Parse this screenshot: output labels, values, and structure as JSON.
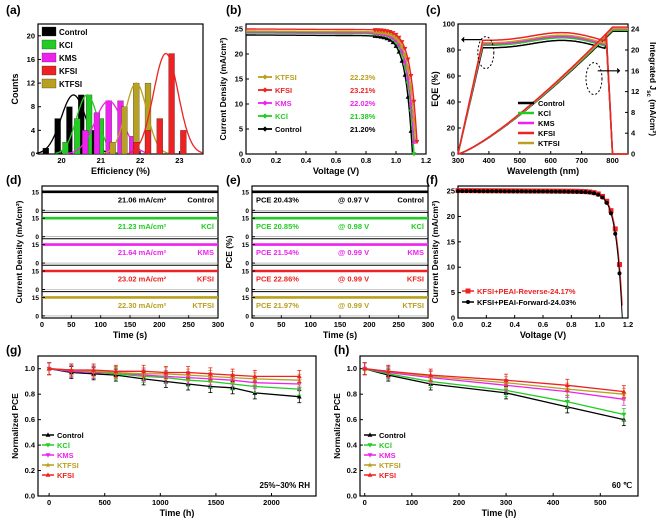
{
  "colors": {
    "Control": "#000000",
    "KCl": "#22cc22",
    "KMS": "#ee22ee",
    "KFSI": "#ee2222",
    "KTFSI": "#b8a020",
    "KFSI_PEAI_Reverse": "#ee2222",
    "KFSI_PEAI_Forward": "#000000"
  },
  "chart_data": [
    {
      "id": "a",
      "panel_label": "(a)",
      "type": "bar",
      "xlabel": "Efficiency (%)",
      "ylabel": "Counts",
      "xlim": [
        19.4,
        23.6
      ],
      "ylim": [
        0,
        22
      ],
      "xticks": [
        20,
        21,
        22,
        23
      ],
      "yticks": [
        0,
        4,
        8,
        12,
        16,
        20
      ],
      "bar_width": 0.15,
      "legend": [
        "Control",
        "KCl",
        "KMS",
        "KFSI",
        "KTFSI"
      ],
      "series": [
        {
          "name": "Control",
          "x": [
            19.6,
            19.9,
            20.2,
            20.5,
            20.8
          ],
          "values": [
            1,
            6,
            8,
            10,
            4
          ]
        },
        {
          "name": "KCl",
          "x": [
            20.1,
            20.4,
            20.7,
            21.0
          ],
          "values": [
            2,
            6,
            10,
            6
          ]
        },
        {
          "name": "KMS",
          "x": [
            20.6,
            20.9,
            21.2,
            21.5,
            21.8
          ],
          "values": [
            4,
            7,
            9,
            9,
            3
          ]
        },
        {
          "name": "KTFSI",
          "x": [
            21.3,
            21.6,
            21.9,
            22.2
          ],
          "values": [
            2,
            8,
            12,
            12
          ]
        },
        {
          "name": "KFSI",
          "x": [
            21.9,
            22.2,
            22.5,
            22.8,
            23.1
          ],
          "values": [
            2,
            4,
            6,
            17,
            4
          ]
        }
      ]
    },
    {
      "id": "b",
      "panel_label": "(b)",
      "type": "line",
      "xlabel": "Voltage (V)",
      "ylabel": "Current Density (mA/cm²)",
      "xlim": [
        0,
        1.2
      ],
      "ylim": [
        0,
        26
      ],
      "xticks": [
        0.0,
        0.2,
        0.4,
        0.6,
        0.8,
        1.0,
        1.2
      ],
      "yticks": [
        0,
        5,
        10,
        15,
        20,
        25
      ],
      "legend_labels": [
        "KTFSI",
        "KFSI",
        "KMS",
        "KCl",
        "Control"
      ],
      "legend_values": [
        "22.23%",
        "23.21%",
        "22.02%",
        "21.38%",
        "21.20%"
      ],
      "series": [
        {
          "name": "Control",
          "jsc": 23.8,
          "voc": 1.11
        },
        {
          "name": "KCl",
          "jsc": 24.2,
          "voc": 1.12
        },
        {
          "name": "KMS",
          "jsc": 24.4,
          "voc": 1.125
        },
        {
          "name": "KTFSI",
          "jsc": 24.6,
          "voc": 1.135
        },
        {
          "name": "KFSI",
          "jsc": 25.0,
          "voc": 1.145
        }
      ]
    },
    {
      "id": "c",
      "panel_label": "(c)",
      "type": "line",
      "xlabel": "Wavelength (nm)",
      "ylabel": "EQE (%)",
      "ylabel_right": "Integrated J",
      "ylabel_right_sub": "sc",
      "ylabel_right_unit": " (mA/cm²)",
      "xlim": [
        300,
        850
      ],
      "ylim": [
        0,
        100
      ],
      "ylim_right": [
        0,
        25
      ],
      "xticks": [
        300,
        400,
        500,
        600,
        700,
        800
      ],
      "yticks": [
        0,
        20,
        40,
        60,
        80,
        100
      ],
      "yticks_right": [
        0,
        4,
        8,
        12,
        16,
        20,
        24
      ],
      "legend": [
        "Control",
        "KCl",
        "KMS",
        "KFSI",
        "KTFSI"
      ],
      "series": [
        {
          "name": "Control",
          "eqe_peak": 86,
          "jsc_final": 23.6
        },
        {
          "name": "KCl",
          "eqe_peak": 88,
          "jsc_final": 23.8
        },
        {
          "name": "KMS",
          "eqe_peak": 89,
          "jsc_final": 24.0
        },
        {
          "name": "KTFSI",
          "eqe_peak": 90,
          "jsc_final": 24.1
        },
        {
          "name": "KFSI",
          "eqe_peak": 92,
          "jsc_final": 24.4
        }
      ]
    },
    {
      "id": "d",
      "panel_label": "(d)",
      "type": "line",
      "xlabel": "Time (s)",
      "ylabel": "Current Density (mA/cm²)",
      "xlim": [
        0,
        300
      ],
      "xticks": [
        0,
        50,
        100,
        150,
        200,
        250,
        300
      ],
      "sub_yticks": [
        "0",
        "15"
      ],
      "series": [
        {
          "name": "Control",
          "value_label": "21.06 mA/cm²",
          "value": 21.06
        },
        {
          "name": "KCl",
          "value_label": "21.23 mA/cm²",
          "value": 21.23
        },
        {
          "name": "KMS",
          "value_label": "21.64 mA/cm²",
          "value": 21.64
        },
        {
          "name": "KFSI",
          "value_label": "23.02 mA/cm²",
          "value": 23.02
        },
        {
          "name": "KTFSI",
          "value_label": "22.30 mA/cm²",
          "value": 22.3
        }
      ]
    },
    {
      "id": "e",
      "panel_label": "(e)",
      "type": "line",
      "xlabel": "Time (s)",
      "ylabel": "PCE (%)",
      "xlim": [
        0,
        300
      ],
      "xticks": [
        0,
        50,
        100,
        150,
        200,
        250,
        300
      ],
      "sub_yticks": [
        "0",
        "15"
      ],
      "series": [
        {
          "name": "Control",
          "pce_label": "PCE 20.43%",
          "voltage_label": "@ 0.97 V",
          "pce": 20.43
        },
        {
          "name": "KCl",
          "pce_label": "PCE 20.85%",
          "voltage_label": "@ 0.98 V",
          "pce": 20.85
        },
        {
          "name": "KMS",
          "pce_label": "PCE 21.54%",
          "voltage_label": "@ 0.99 V",
          "pce": 21.54
        },
        {
          "name": "KFSI",
          "pce_label": "PCE 22.86%",
          "voltage_label": "@ 0.99 V",
          "pce": 22.86
        },
        {
          "name": "KTFSI",
          "pce_label": "PCE 21.97%",
          "voltage_label": "@ 0.99 V",
          "pce": 21.97
        }
      ]
    },
    {
      "id": "f",
      "panel_label": "(f)",
      "type": "line",
      "xlabel": "Voltage (V)",
      "ylabel": "Current Density (mA/cm²)",
      "xlim": [
        0,
        1.2
      ],
      "ylim": [
        0,
        26
      ],
      "xticks": [
        0.0,
        0.2,
        0.4,
        0.6,
        0.8,
        1.0,
        1.2
      ],
      "yticks": [
        0,
        5,
        10,
        15,
        20,
        25
      ],
      "series": [
        {
          "name": "KFSI+PEAI-Reverse-24.17%",
          "jsc": 25.1,
          "voc": 1.165
        },
        {
          "name": "KFSI+PEAI-Forward-24.03%",
          "jsc": 25.0,
          "voc": 1.16
        }
      ]
    },
    {
      "id": "g",
      "panel_label": "(g)",
      "type": "line",
      "xlabel": "Time (h)",
      "ylabel": "Normalized PCE",
      "annotation": "25%~30% RH",
      "xlim": [
        -100,
        2400
      ],
      "ylim": [
        0,
        1.1
      ],
      "xticks": [
        0,
        500,
        1000,
        1500,
        2000
      ],
      "yticks": [
        0.0,
        0.2,
        0.4,
        0.6,
        0.8,
        1.0
      ],
      "x": [
        0,
        200,
        400,
        600,
        850,
        1050,
        1250,
        1450,
        1650,
        1850,
        2250
      ],
      "legend": [
        "Control",
        "KCl",
        "KMS",
        "KTFSI",
        "KFSI"
      ],
      "series": [
        {
          "name": "Control",
          "values": [
            1.0,
            0.97,
            0.96,
            0.95,
            0.92,
            0.9,
            0.88,
            0.86,
            0.85,
            0.81,
            0.78
          ]
        },
        {
          "name": "KCl",
          "values": [
            1.0,
            0.98,
            0.97,
            0.96,
            0.94,
            0.93,
            0.91,
            0.9,
            0.88,
            0.86,
            0.84
          ]
        },
        {
          "name": "KMS",
          "values": [
            1.0,
            0.98,
            0.97,
            0.97,
            0.95,
            0.94,
            0.93,
            0.92,
            0.91,
            0.89,
            0.88
          ]
        },
        {
          "name": "KTFSI",
          "values": [
            1.0,
            0.99,
            0.98,
            0.97,
            0.96,
            0.96,
            0.95,
            0.94,
            0.93,
            0.92,
            0.91
          ]
        },
        {
          "name": "KFSI",
          "values": [
            1.0,
            0.99,
            0.99,
            0.98,
            0.98,
            0.97,
            0.97,
            0.96,
            0.95,
            0.94,
            0.94
          ]
        }
      ]
    },
    {
      "id": "h",
      "panel_label": "(h)",
      "type": "line",
      "xlabel": "Time (h)",
      "ylabel": "Normalized PCE",
      "annotation": "60 ℃",
      "xlim": [
        -10,
        580
      ],
      "ylim": [
        0,
        1.1
      ],
      "xticks": [
        0,
        100,
        200,
        300,
        400,
        500
      ],
      "yticks": [
        0.0,
        0.2,
        0.4,
        0.6,
        0.8,
        1.0
      ],
      "x": [
        0,
        50,
        140,
        300,
        430,
        550
      ],
      "legend": [
        "Control",
        "KCl",
        "KMS",
        "KTFSI",
        "KFSI"
      ],
      "series": [
        {
          "name": "Control",
          "values": [
            1.0,
            0.95,
            0.88,
            0.81,
            0.7,
            0.6
          ]
        },
        {
          "name": "KCl",
          "values": [
            1.0,
            0.96,
            0.9,
            0.83,
            0.74,
            0.64
          ]
        },
        {
          "name": "KMS",
          "values": [
            1.0,
            0.97,
            0.93,
            0.87,
            0.82,
            0.76
          ]
        },
        {
          "name": "KTFSI",
          "values": [
            1.0,
            0.98,
            0.94,
            0.89,
            0.84,
            0.8
          ]
        },
        {
          "name": "KFSI",
          "values": [
            1.0,
            0.98,
            0.95,
            0.91,
            0.87,
            0.82
          ]
        }
      ]
    }
  ]
}
